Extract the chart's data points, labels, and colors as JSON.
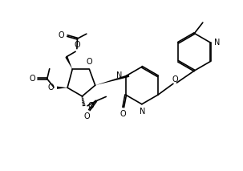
{
  "bg_color": "#ffffff",
  "line_color": "#000000",
  "line_width": 1.2,
  "font_size": 7,
  "figsize": [
    3.03,
    2.13
  ],
  "dpi": 100,
  "xlim": [
    0,
    10.1
  ],
  "ylim": [
    0,
    7.1
  ]
}
